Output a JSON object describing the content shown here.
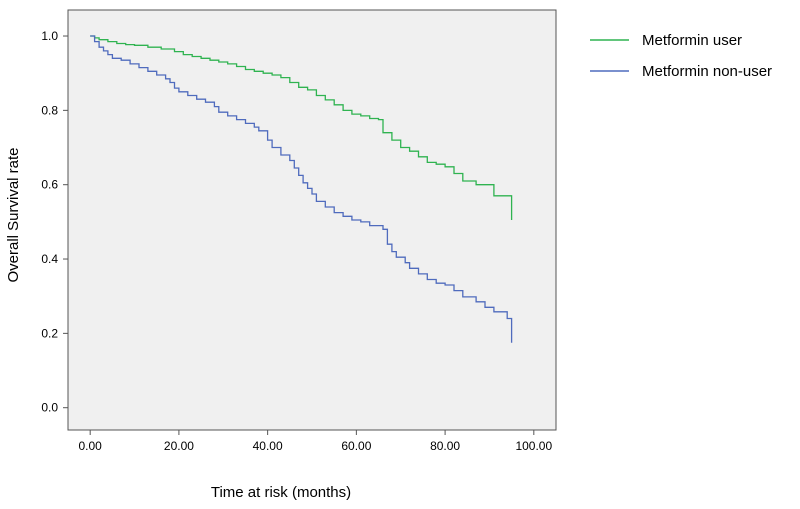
{
  "chart_data": {
    "type": "line",
    "xlabel": "Time at risk (months)",
    "ylabel": "Overall Survival rate",
    "xlim": [
      -5,
      105
    ],
    "ylim": [
      -0.06,
      1.07
    ],
    "x_ticks": [
      0,
      20,
      40,
      60,
      80,
      100
    ],
    "x_tick_labels": [
      "0.00",
      "20.00",
      "40.00",
      "60.00",
      "80.00",
      "100.00"
    ],
    "y_ticks": [
      0,
      0.2,
      0.4,
      0.6,
      0.8,
      1.0
    ],
    "y_tick_labels": [
      "0.0",
      "0.2",
      "0.4",
      "0.6",
      "0.8",
      "1.0"
    ],
    "grid": false,
    "legend_position": "outside-right",
    "plot_background": "#f0f0f0",
    "series": [
      {
        "name": "Metformin user",
        "color": "#2fb350",
        "step": true,
        "points": [
          [
            0,
            1.0
          ],
          [
            1,
            0.995
          ],
          [
            2,
            0.99
          ],
          [
            4,
            0.985
          ],
          [
            6,
            0.98
          ],
          [
            8,
            0.977
          ],
          [
            10,
            0.975
          ],
          [
            13,
            0.97
          ],
          [
            16,
            0.965
          ],
          [
            19,
            0.958
          ],
          [
            21,
            0.95
          ],
          [
            23,
            0.945
          ],
          [
            25,
            0.94
          ],
          [
            27,
            0.935
          ],
          [
            29,
            0.93
          ],
          [
            31,
            0.925
          ],
          [
            33,
            0.918
          ],
          [
            35,
            0.91
          ],
          [
            37,
            0.905
          ],
          [
            39,
            0.9
          ],
          [
            41,
            0.895
          ],
          [
            43,
            0.888
          ],
          [
            45,
            0.875
          ],
          [
            47,
            0.862
          ],
          [
            49,
            0.855
          ],
          [
            51,
            0.84
          ],
          [
            53,
            0.828
          ],
          [
            55,
            0.815
          ],
          [
            57,
            0.8
          ],
          [
            59,
            0.79
          ],
          [
            61,
            0.785
          ],
          [
            63,
            0.778
          ],
          [
            65,
            0.775
          ],
          [
            66,
            0.74
          ],
          [
            68,
            0.72
          ],
          [
            70,
            0.7
          ],
          [
            72,
            0.69
          ],
          [
            74,
            0.675
          ],
          [
            76,
            0.66
          ],
          [
            78,
            0.655
          ],
          [
            80,
            0.648
          ],
          [
            82,
            0.63
          ],
          [
            84,
            0.61
          ],
          [
            87,
            0.6
          ],
          [
            91,
            0.57
          ],
          [
            95,
            0.55
          ],
          [
            95,
            0.505
          ]
        ]
      },
      {
        "name": "Metformin non-user",
        "color": "#4f6bbd",
        "step": true,
        "points": [
          [
            0,
            1.0
          ],
          [
            1,
            0.985
          ],
          [
            2,
            0.97
          ],
          [
            3,
            0.96
          ],
          [
            4,
            0.95
          ],
          [
            5,
            0.94
          ],
          [
            7,
            0.935
          ],
          [
            9,
            0.925
          ],
          [
            11,
            0.915
          ],
          [
            13,
            0.905
          ],
          [
            15,
            0.895
          ],
          [
            17,
            0.885
          ],
          [
            18,
            0.875
          ],
          [
            19,
            0.86
          ],
          [
            20,
            0.85
          ],
          [
            22,
            0.84
          ],
          [
            24,
            0.83
          ],
          [
            26,
            0.822
          ],
          [
            28,
            0.81
          ],
          [
            29,
            0.795
          ],
          [
            31,
            0.785
          ],
          [
            33,
            0.775
          ],
          [
            35,
            0.765
          ],
          [
            37,
            0.755
          ],
          [
            38,
            0.745
          ],
          [
            40,
            0.72
          ],
          [
            41,
            0.7
          ],
          [
            43,
            0.68
          ],
          [
            45,
            0.665
          ],
          [
            46,
            0.645
          ],
          [
            47,
            0.625
          ],
          [
            48,
            0.605
          ],
          [
            49,
            0.59
          ],
          [
            50,
            0.575
          ],
          [
            51,
            0.555
          ],
          [
            53,
            0.54
          ],
          [
            55,
            0.525
          ],
          [
            57,
            0.515
          ],
          [
            59,
            0.505
          ],
          [
            61,
            0.5
          ],
          [
            63,
            0.49
          ],
          [
            66,
            0.48
          ],
          [
            67,
            0.44
          ],
          [
            68,
            0.42
          ],
          [
            69,
            0.405
          ],
          [
            71,
            0.39
          ],
          [
            72,
            0.375
          ],
          [
            74,
            0.36
          ],
          [
            76,
            0.345
          ],
          [
            78,
            0.335
          ],
          [
            80,
            0.33
          ],
          [
            82,
            0.315
          ],
          [
            84,
            0.298
          ],
          [
            87,
            0.285
          ],
          [
            89,
            0.27
          ],
          [
            91,
            0.258
          ],
          [
            94,
            0.24
          ],
          [
            95,
            0.24
          ],
          [
            95,
            0.175
          ]
        ]
      }
    ]
  }
}
